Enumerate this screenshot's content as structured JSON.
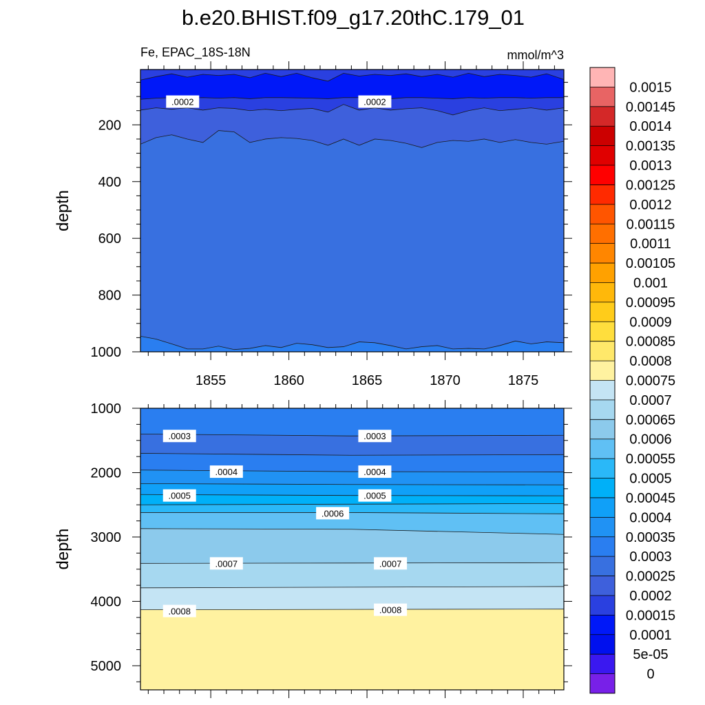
{
  "chart_data": {
    "type": "contour",
    "title": "b.e20.BHIST.f09_g17.20thC.179_01",
    "left_subtitle": "Fe, EPAC_18S-18N",
    "right_subtitle": "mmol/m^3",
    "panels": [
      {
        "name": "upper",
        "ylabel": "depth",
        "xlim": [
          1850.5,
          1877.6
        ],
        "ylim": [
          5,
          1000
        ],
        "x_ticks": [
          1855,
          1860,
          1865,
          1870,
          1875
        ],
        "x_tick_labels": [
          "1855",
          "1860",
          "1865",
          "1870",
          "1875"
        ],
        "y_ticks": [
          200,
          400,
          600,
          800,
          1000
        ],
        "y_tick_labels": [
          "200",
          "400",
          "600",
          "800",
          "1000"
        ],
        "contour_lines": [
          {
            "level": 0.00015,
            "points": [
              [
                1850.5,
                42
              ],
              [
                1851.5,
                30
              ],
              [
                1852.5,
                20
              ],
              [
                1853.5,
                32
              ],
              [
                1854.5,
                22
              ],
              [
                1855.5,
                26
              ],
              [
                1856.5,
                22
              ],
              [
                1857.5,
                34
              ],
              [
                1858.5,
                18
              ],
              [
                1859.5,
                30
              ],
              [
                1860.5,
                18
              ],
              [
                1861.5,
                34
              ],
              [
                1862.5,
                46
              ],
              [
                1863.5,
                18
              ],
              [
                1864.5,
                28
              ],
              [
                1865.5,
                22
              ],
              [
                1866.5,
                26
              ],
              [
                1867.5,
                20
              ],
              [
                1868.5,
                30
              ],
              [
                1869.5,
                22
              ],
              [
                1870.5,
                32
              ],
              [
                1871.5,
                18
              ],
              [
                1872.5,
                30
              ],
              [
                1873.5,
                22
              ],
              [
                1874.5,
                26
              ],
              [
                1875.5,
                32
              ],
              [
                1876.5,
                20
              ],
              [
                1877.6,
                40
              ]
            ]
          },
          {
            "level": 0.0002,
            "points": [
              [
                1850.5,
                110
              ],
              [
                1851.5,
                106
              ],
              [
                1852.5,
                104
              ],
              [
                1853.5,
                106
              ],
              [
                1854.5,
                104
              ],
              [
                1855.5,
                106
              ],
              [
                1856.5,
                104
              ],
              [
                1857.5,
                108
              ],
              [
                1858.5,
                104
              ],
              [
                1859.5,
                104
              ],
              [
                1860.5,
                105
              ],
              [
                1861.5,
                106
              ],
              [
                1862.5,
                108
              ],
              [
                1863.5,
                104
              ],
              [
                1864.5,
                104
              ],
              [
                1865.5,
                106
              ],
              [
                1866.5,
                108
              ],
              [
                1867.5,
                104
              ],
              [
                1868.5,
                104
              ],
              [
                1869.5,
                106
              ],
              [
                1870.5,
                108
              ],
              [
                1871.5,
                104
              ],
              [
                1872.5,
                106
              ],
              [
                1873.5,
                104
              ],
              [
                1874.5,
                104
              ],
              [
                1875.5,
                106
              ],
              [
                1876.5,
                104
              ],
              [
                1877.6,
                104
              ]
            ]
          },
          {
            "level": 0.00025,
            "points": [
              [
                1850.5,
                148
              ],
              [
                1851.5,
                140
              ],
              [
                1852.5,
                145
              ],
              [
                1853.5,
                140
              ],
              [
                1854.5,
                148
              ],
              [
                1855.5,
                140
              ],
              [
                1856.5,
                142
              ],
              [
                1857.5,
                150
              ],
              [
                1858.5,
                145
              ],
              [
                1859.5,
                150
              ],
              [
                1860.5,
                145
              ],
              [
                1861.5,
                142
              ],
              [
                1862.5,
                155
              ],
              [
                1863.5,
                128
              ],
              [
                1864.5,
                148
              ],
              [
                1865.5,
                140
              ],
              [
                1866.5,
                148
              ],
              [
                1867.5,
                143
              ],
              [
                1868.5,
                140
              ],
              [
                1869.5,
                150
              ],
              [
                1870.5,
                165
              ],
              [
                1871.5,
                150
              ],
              [
                1872.5,
                140
              ],
              [
                1873.5,
                150
              ],
              [
                1874.5,
                145
              ],
              [
                1875.5,
                140
              ],
              [
                1876.5,
                148
              ],
              [
                1877.6,
                140
              ]
            ]
          },
          {
            "level": 0.0003,
            "points": [
              [
                1850.5,
                268
              ],
              [
                1851.5,
                245
              ],
              [
                1852.5,
                235
              ],
              [
                1853.5,
                250
              ],
              [
                1854.5,
                262
              ],
              [
                1855.5,
                220
              ],
              [
                1856.5,
                225
              ],
              [
                1857.5,
                262
              ],
              [
                1858.5,
                250
              ],
              [
                1859.5,
                245
              ],
              [
                1860.5,
                248
              ],
              [
                1861.5,
                255
              ],
              [
                1862.5,
                272
              ],
              [
                1863.5,
                250
              ],
              [
                1864.5,
                272
              ],
              [
                1865.5,
                250
              ],
              [
                1866.5,
                255
              ],
              [
                1867.5,
                265
              ],
              [
                1868.5,
                280
              ],
              [
                1869.5,
                262
              ],
              [
                1870.5,
                255
              ],
              [
                1871.5,
                258
              ],
              [
                1872.5,
                250
              ],
              [
                1873.5,
                262
              ],
              [
                1874.5,
                252
              ],
              [
                1875.5,
                262
              ],
              [
                1876.5,
                268
              ],
              [
                1877.6,
                258
              ]
            ]
          },
          {
            "level": 0.00035,
            "points": [
              [
                1850.5,
                945
              ],
              [
                1851.5,
                955
              ],
              [
                1852.5,
                972
              ],
              [
                1853.5,
                990
              ],
              [
                1854.5,
                990
              ],
              [
                1855.5,
                980
              ],
              [
                1856.5,
                992
              ],
              [
                1857.5,
                988
              ],
              [
                1858.5,
                978
              ],
              [
                1859.5,
                985
              ],
              [
                1860.5,
                970
              ],
              [
                1861.5,
                975
              ],
              [
                1862.5,
                985
              ],
              [
                1863.5,
                982
              ],
              [
                1864.5,
                965
              ],
              [
                1865.5,
                968
              ],
              [
                1866.5,
                978
              ],
              [
                1867.5,
                990
              ],
              [
                1868.5,
                982
              ],
              [
                1869.5,
                978
              ],
              [
                1870.5,
                990
              ],
              [
                1871.5,
                988
              ],
              [
                1872.5,
                990
              ],
              [
                1873.5,
                978
              ],
              [
                1874.5,
                962
              ],
              [
                1875.5,
                972
              ],
              [
                1876.5,
                965
              ],
              [
                1877.6,
                968
              ]
            ]
          }
        ],
        "contour_labels": [
          {
            "text": ".0002",
            "x": 1853.2,
            "y": 118
          },
          {
            "text": ".0002",
            "x": 1865.5,
            "y": 118
          }
        ]
      },
      {
        "name": "lower",
        "ylabel": "depth",
        "xlim": [
          1850.5,
          1877.6
        ],
        "ylim": [
          1000,
          5375
        ],
        "y_ticks": [
          1000,
          2000,
          3000,
          4000,
          5000
        ],
        "y_tick_labels": [
          "1000",
          "2000",
          "3000",
          "4000",
          "5000"
        ],
        "contour_lines": [
          {
            "level": 0.0003,
            "points": [
              [
                1850.5,
                1400
              ],
              [
                1864,
                1430
              ],
              [
                1877.6,
                1420
              ]
            ]
          },
          {
            "level": 0.00035,
            "points": [
              [
                1850.5,
                1700
              ],
              [
                1864,
                1730
              ],
              [
                1877.6,
                1720
              ]
            ]
          },
          {
            "level": 0.0004,
            "points": [
              [
                1850.5,
                1960
              ],
              [
                1864,
                1985
              ],
              [
                1877.6,
                1990
              ]
            ]
          },
          {
            "level": 0.00045,
            "points": [
              [
                1850.5,
                2170
              ],
              [
                1864,
                2185
              ],
              [
                1877.6,
                2190
              ]
            ]
          },
          {
            "level": 0.0005,
            "points": [
              [
                1850.5,
                2340
              ],
              [
                1864,
                2355
              ],
              [
                1877.6,
                2360
              ]
            ]
          },
          {
            "level": 0.00055,
            "points": [
              [
                1850.5,
                2500
              ],
              [
                1864,
                2490
              ],
              [
                1877.6,
                2480
              ]
            ]
          },
          {
            "level": 0.0006,
            "points": [
              [
                1850.5,
                2620
              ],
              [
                1864,
                2620
              ],
              [
                1877.6,
                2640
              ]
            ]
          },
          {
            "level": 0.00065,
            "points": [
              [
                1850.5,
                2870
              ],
              [
                1864,
                2880
              ],
              [
                1877.6,
                2960
              ]
            ]
          },
          {
            "level": 0.0007,
            "points": [
              [
                1850.5,
                3410
              ],
              [
                1864,
                3405
              ],
              [
                1877.6,
                3400
              ]
            ]
          },
          {
            "level": 0.00075,
            "points": [
              [
                1850.5,
                3790
              ],
              [
                1864,
                3780
              ],
              [
                1877.6,
                3770
              ]
            ]
          },
          {
            "level": 0.0008,
            "points": [
              [
                1850.5,
                4130
              ],
              [
                1864,
                4125
              ],
              [
                1877.6,
                4120
              ]
            ]
          }
        ],
        "contour_labels": [
          {
            "text": ".0003",
            "x": 1853.0,
            "y": 1430
          },
          {
            "text": ".0003",
            "x": 1865.5,
            "y": 1430
          },
          {
            "text": ".0004",
            "x": 1856.0,
            "y": 1985
          },
          {
            "text": ".0004",
            "x": 1865.5,
            "y": 1985
          },
          {
            "text": ".0005",
            "x": 1853.0,
            "y": 2355
          },
          {
            "text": ".0005",
            "x": 1865.5,
            "y": 2355
          },
          {
            "text": ".0006",
            "x": 1862.8,
            "y": 2630
          },
          {
            "text": ".0007",
            "x": 1856.0,
            "y": 3410
          },
          {
            "text": ".0007",
            "x": 1866.5,
            "y": 3410
          },
          {
            "text": ".0008",
            "x": 1853.0,
            "y": 4150
          },
          {
            "text": ".0008",
            "x": 1866.5,
            "y": 4130
          }
        ]
      }
    ],
    "colorbar": {
      "labels": [
        "0.0015",
        "0.00145",
        "0.0014",
        "0.00135",
        "0.0013",
        "0.00125",
        "0.0012",
        "0.00115",
        "0.0011",
        "0.00105",
        "0.001",
        "0.00095",
        "0.0009",
        "0.00085",
        "0.0008",
        "0.00075",
        "0.0007",
        "0.00065",
        "0.0006",
        "0.00055",
        "0.0005",
        "0.00045",
        "0.0004",
        "0.00035",
        "0.0003",
        "0.00025",
        "0.0002",
        "0.00015",
        "0.0001",
        "5e-05",
        "0"
      ],
      "colors": [
        "#ffb5b5",
        "#e86464",
        "#d42828",
        "#cc0000",
        "#e00000",
        "#ff0000",
        "#ff2a00",
        "#ff5500",
        "#ff6f00",
        "#ff8600",
        "#ffa100",
        "#ffb80a",
        "#ffcc1a",
        "#ffde3d",
        "#ffe86a",
        "#fff2a0",
        "#c4e4f4",
        "#a6d8f0",
        "#8ccaec",
        "#60c0f4",
        "#2ab8f8",
        "#00b0f8",
        "#10a0f8",
        "#2092f4",
        "#2a7ef0",
        "#3870e0",
        "#3e60dc",
        "#2a40e0",
        "#0018f8",
        "#0010ee",
        "#3a18f0",
        "#7820e8"
      ]
    }
  }
}
